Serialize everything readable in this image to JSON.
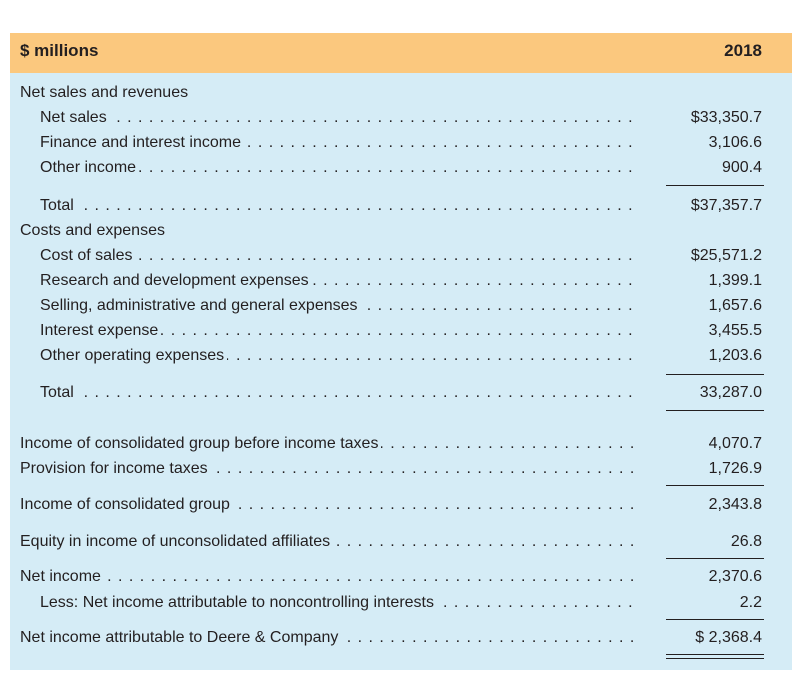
{
  "header": {
    "title": "$ millions",
    "year": "2018"
  },
  "sections": {
    "revenues": "Net sales and revenues",
    "costs": "Costs and expenses"
  },
  "rows": {
    "net_sales": {
      "label": "Net sales",
      "value": "$33,350.7"
    },
    "finance_income": {
      "label": "Finance and interest income",
      "value": "3,106.6"
    },
    "other_income": {
      "label": "Other income",
      "value": "900.4"
    },
    "total_revenues": {
      "label": "Total",
      "value": "$37,357.7"
    },
    "cost_of_sales": {
      "label": "Cost of sales",
      "value": "$25,571.2"
    },
    "rnd": {
      "label": "Research and development expenses",
      "value": "1,399.1"
    },
    "sga": {
      "label": "Selling, administrative and general expenses",
      "value": "1,657.6"
    },
    "interest_expense": {
      "label": "Interest expense",
      "value": "3,455.5"
    },
    "other_operating": {
      "label": "Other operating expenses",
      "value": "1,203.6"
    },
    "total_costs": {
      "label": "Total",
      "value": "33,287.0"
    },
    "income_before_tax": {
      "label": "Income of consolidated group before income taxes",
      "value": "4,070.7"
    },
    "tax_provision": {
      "label": "Provision for income taxes",
      "value": "1,726.9"
    },
    "income_group": {
      "label": "Income of consolidated group",
      "value": "2,343.8"
    },
    "equity_income": {
      "label": "Equity in income of unconsolidated affiliates",
      "value": "26.8"
    },
    "net_income": {
      "label": "Net income",
      "value": "2,370.6"
    },
    "noncontrolling": {
      "label": "Less: Net income attributable to noncontrolling interests",
      "value": "2.2"
    },
    "net_income_deere": {
      "label": "Net income attributable to Deere & Company",
      "value": "$ 2,368.4"
    }
  }
}
